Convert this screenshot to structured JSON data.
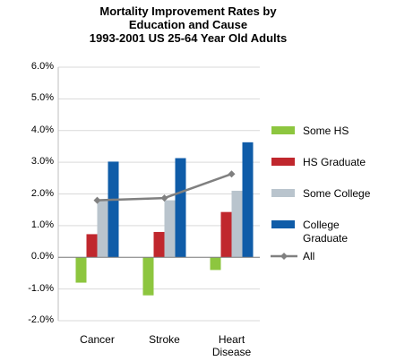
{
  "chart_data": {
    "type": "bar",
    "title": "Mortality Improvement Rates by Education and Cause",
    "subtitle": "1993-2001 US 25-64 Year Old Adults",
    "categories": [
      "Cancer",
      "Stroke",
      "Heart Disease"
    ],
    "series": [
      {
        "name": "Some HS",
        "color": "#8dc63f",
        "values": [
          -0.8,
          -1.2,
          -0.4
        ]
      },
      {
        "name": "HS Graduate",
        "color": "#c0272d",
        "values": [
          0.73,
          0.8,
          1.43
        ]
      },
      {
        "name": "Some College",
        "color": "#b9c4cd",
        "values": [
          1.8,
          1.8,
          2.1
        ]
      },
      {
        "name": "College Graduate",
        "color": "#0f5ca8",
        "values": [
          3.02,
          3.13,
          3.63
        ]
      },
      {
        "name": "All",
        "color": "#808080",
        "type": "line",
        "values": [
          1.8,
          1.87,
          2.63
        ]
      }
    ],
    "ylim": [
      -2,
      6
    ],
    "yticks": [
      {
        "value": -2,
        "label": "-2.0%"
      },
      {
        "value": -1,
        "label": "-1.0%"
      },
      {
        "value": 0,
        "label": "0.0%"
      },
      {
        "value": 1,
        "label": "1.0%"
      },
      {
        "value": 2,
        "label": "2.0%"
      },
      {
        "value": 3,
        "label": "3.0%"
      },
      {
        "value": 4,
        "label": "4.0%"
      },
      {
        "value": 5,
        "label": "5.0%"
      },
      {
        "value": 6,
        "label": "6.0%"
      }
    ],
    "grid": true,
    "legend": "right"
  }
}
